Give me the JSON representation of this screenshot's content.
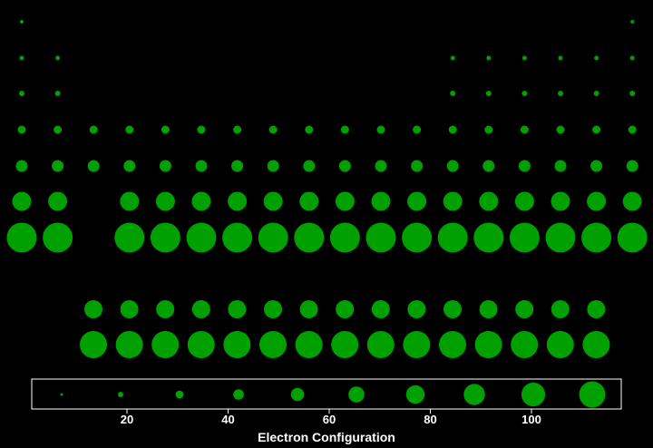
{
  "chart_data": {
    "type": "scatter",
    "xlabel": "Electron Configuration",
    "ylabel": "",
    "x_ticks": [
      20,
      40,
      60,
      80,
      100
    ],
    "marker_color": "#00a000",
    "background": "#000000",
    "legend_box_color": "#ffffff",
    "main_table": {
      "description_rows": 7,
      "columns": [
        {
          "col": 1,
          "rows": [
            1,
            2,
            3,
            4,
            5,
            6,
            7
          ]
        },
        {
          "col": 2,
          "rows": [
            2,
            3,
            4,
            5,
            6,
            7
          ]
        },
        {
          "col": 3,
          "rows": [
            4,
            5
          ]
        },
        {
          "col": 4,
          "rows": [
            4,
            5,
            6,
            7
          ]
        },
        {
          "col": 5,
          "rows": [
            4,
            5,
            6,
            7
          ]
        },
        {
          "col": 6,
          "rows": [
            4,
            5,
            6,
            7
          ]
        },
        {
          "col": 7,
          "rows": [
            4,
            5,
            6,
            7
          ]
        },
        {
          "col": 8,
          "rows": [
            4,
            5,
            6,
            7
          ]
        },
        {
          "col": 9,
          "rows": [
            4,
            5,
            6,
            7
          ]
        },
        {
          "col": 10,
          "rows": [
            4,
            5,
            6,
            7
          ]
        },
        {
          "col": 11,
          "rows": [
            4,
            5,
            6,
            7
          ]
        },
        {
          "col": 12,
          "rows": [
            4,
            5,
            6,
            7
          ]
        },
        {
          "col": 13,
          "rows": [
            2,
            3,
            4,
            5,
            6,
            7
          ]
        },
        {
          "col": 14,
          "rows": [
            2,
            3,
            4,
            5,
            6,
            7
          ]
        },
        {
          "col": 15,
          "rows": [
            2,
            3,
            4,
            5,
            6,
            7
          ]
        },
        {
          "col": 16,
          "rows": [
            2,
            3,
            4,
            5,
            6,
            7
          ]
        },
        {
          "col": 17,
          "rows": [
            2,
            3,
            4,
            5,
            6,
            7
          ]
        },
        {
          "col": 18,
          "rows": [
            1,
            2,
            3,
            4,
            5,
            6,
            7
          ]
        }
      ]
    },
    "f_block": {
      "columns": 15,
      "rows": [
        6,
        7
      ]
    },
    "size_legend": {
      "steps": 10
    }
  }
}
